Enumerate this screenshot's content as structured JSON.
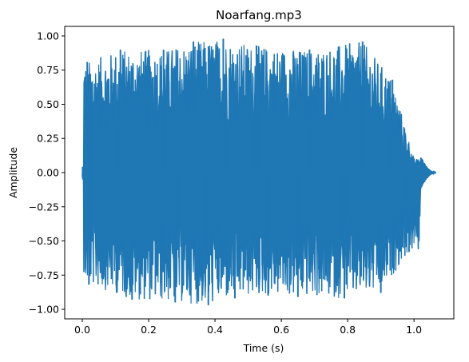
{
  "chart_data": {
    "type": "line",
    "title": "Noarfang.mp3",
    "xlabel": "Time (s)",
    "ylabel": "Amplitude",
    "xlim": [
      -0.053,
      1.12
    ],
    "ylim": [
      -1.07,
      1.07
    ],
    "x_ticks": [
      0.0,
      0.2,
      0.4,
      0.6,
      0.8,
      1.0
    ],
    "x_tick_labels": [
      "0.0",
      "0.2",
      "0.4",
      "0.6",
      "0.8",
      "1.0"
    ],
    "y_ticks": [
      1.0,
      0.75,
      0.5,
      0.25,
      0.0,
      -0.25,
      -0.5,
      -0.75,
      -1.0
    ],
    "y_tick_labels": [
      "1.00",
      "0.75",
      "0.50",
      "0.25",
      "0.00",
      "−0.25",
      "−0.50",
      "−0.75",
      "−1.00"
    ],
    "grid": false,
    "series": [
      {
        "name": "waveform",
        "color": "#1f77b4",
        "duration": 1.065,
        "sustain_end": 1.02,
        "max_amplitude": 0.98,
        "min_amplitude": -0.97,
        "peaks": [
          {
            "x": 0.015,
            "y": 0.81
          },
          {
            "x": 0.115,
            "y": 0.9
          },
          {
            "x": 0.245,
            "y": 0.9
          },
          {
            "x": 0.335,
            "y": 0.96
          },
          {
            "x": 0.425,
            "y": 0.98
          },
          {
            "x": 0.525,
            "y": 0.93
          },
          {
            "x": 0.685,
            "y": 0.9
          },
          {
            "x": 0.845,
            "y": 0.96
          },
          {
            "x": 0.935,
            "y": 0.68
          },
          {
            "x": 1.0,
            "y": 0.1
          }
        ],
        "troughs": [
          {
            "x": 0.02,
            "y": -0.82
          },
          {
            "x": 0.15,
            "y": -0.93
          },
          {
            "x": 0.28,
            "y": -0.95
          },
          {
            "x": 0.38,
            "y": -0.97
          },
          {
            "x": 0.46,
            "y": -0.92
          },
          {
            "x": 0.56,
            "y": -0.9
          },
          {
            "x": 0.65,
            "y": -0.91
          },
          {
            "x": 0.79,
            "y": -0.92
          },
          {
            "x": 0.9,
            "y": -0.88
          },
          {
            "x": 0.985,
            "y": -0.58
          }
        ]
      }
    ]
  }
}
